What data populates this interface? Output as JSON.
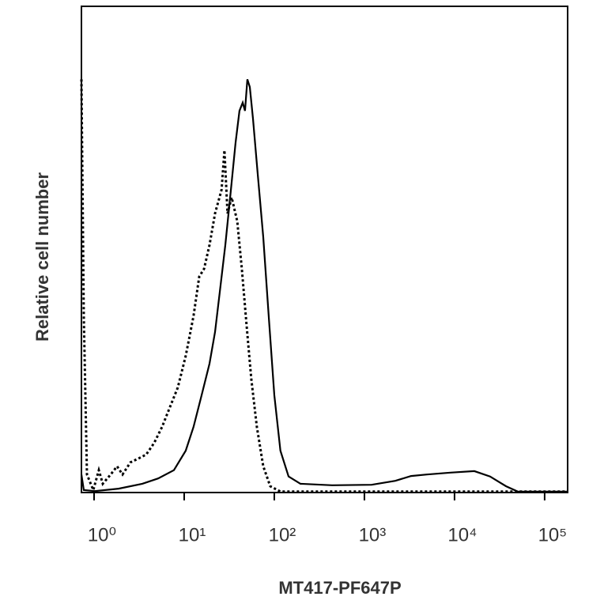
{
  "chart_data": {
    "type": "line",
    "xlabel": "MT417-PF647P",
    "ylabel": "Relative cell number",
    "xscale": "log",
    "xlim": [
      0.724,
      180000
    ],
    "xticks": [
      {
        "value": 1,
        "label": "10⁰"
      },
      {
        "value": 10,
        "label": "10¹"
      },
      {
        "value": 100,
        "label": "10²"
      },
      {
        "value": 1000,
        "label": "10³"
      },
      {
        "value": 10000,
        "label": "10⁴"
      },
      {
        "value": 100000,
        "label": "10⁵"
      }
    ],
    "ylim": [
      0,
      100
    ],
    "series": [
      {
        "color": "#000000",
        "dash": "solid",
        "x": [
          0.724,
          0.769,
          1.02,
          1.87,
          3.43,
          5.14,
          7.69,
          10.4,
          12.7,
          15.6,
          19.1,
          22.0,
          24.8,
          28.6,
          33.0,
          37.2,
          41.1,
          44.6,
          47.3,
          50.3,
          53.5,
          58.0,
          65.5,
          75.4,
          86.8,
          100,
          117,
          144,
          195,
          437,
          1200,
          2200,
          3300,
          4930,
          9040,
          16600,
          24800,
          37200,
          50300,
          180000
        ],
        "values": [
          3.7,
          0.5,
          0.3,
          0.8,
          1.8,
          2.9,
          4.6,
          8.6,
          13.5,
          20.0,
          26.5,
          33.0,
          41.1,
          50.9,
          62.3,
          72.0,
          78.5,
          80.2,
          78.5,
          85.0,
          83.4,
          76.9,
          65.5,
          52.5,
          36.3,
          20.0,
          8.6,
          3.3,
          1.8,
          1.5,
          1.6,
          2.4,
          3.4,
          3.7,
          4.1,
          4.4,
          3.3,
          1.3,
          0.2,
          0.2
        ]
      },
      {
        "color": "#000000",
        "dash": "dotted",
        "x": [
          0.724,
          0.769,
          0.834,
          0.98,
          1.13,
          1.25,
          1.53,
          1.8,
          2.07,
          2.53,
          3.1,
          3.79,
          4.64,
          5.68,
          6.95,
          8.5,
          10.4,
          12.7,
          14.7,
          16.6,
          19.1,
          22.0,
          26.0,
          28.0,
          30.3,
          33.6,
          38.8,
          43.6,
          49.2,
          55.6,
          64.1,
          75.4,
          90.2,
          117,
          180000
        ],
        "values": [
          85.0,
          36.3,
          3.7,
          0.5,
          4.6,
          1.8,
          3.7,
          5.4,
          3.7,
          6.2,
          7.0,
          7.8,
          10.2,
          13.5,
          17.6,
          21.6,
          28.1,
          36.3,
          44.4,
          46.0,
          50.9,
          57.4,
          62.3,
          70.4,
          57.4,
          60.7,
          55.8,
          46.0,
          34.6,
          23.3,
          13.5,
          5.4,
          1.3,
          0.2,
          0.2
        ]
      }
    ]
  }
}
